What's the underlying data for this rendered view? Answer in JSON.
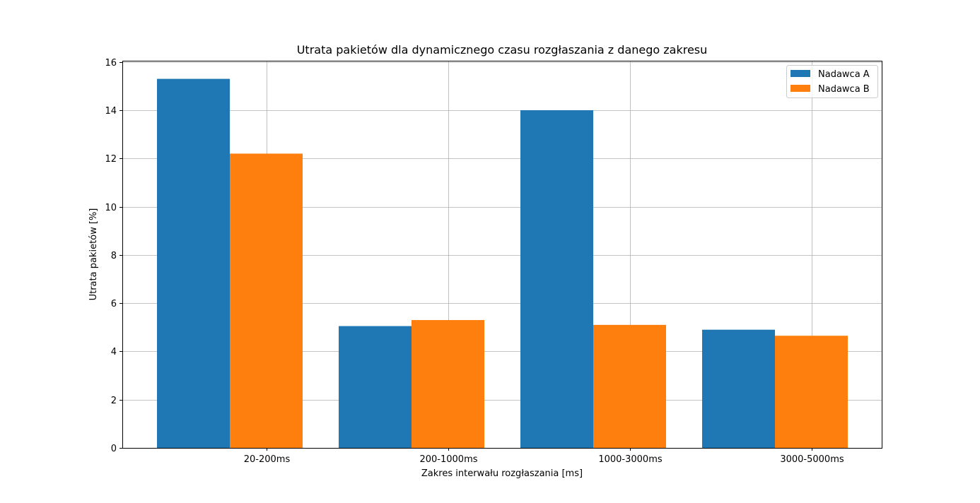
{
  "chart_data": {
    "type": "bar",
    "title": "Utrata pakietów dla dynamicznego czasu rozgłaszania z danego zakresu",
    "xlabel": "Zakres interwału rozgłaszania [ms]",
    "ylabel": "Utrata pakietów [%]",
    "categories": [
      "20-200ms",
      "200-1000ms",
      "1000-3000ms",
      "3000-5000ms"
    ],
    "series": [
      {
        "name": "Nadawca A",
        "color": "#1f77b4",
        "values": [
          15.3,
          5.05,
          14.0,
          4.9
        ]
      },
      {
        "name": "Nadawca B",
        "color": "#ff7f0e",
        "values": [
          12.2,
          5.3,
          5.1,
          4.65
        ]
      }
    ],
    "ylim": [
      0,
      16.05
    ],
    "yticks": [
      0,
      2,
      4,
      6,
      8,
      10,
      12,
      14,
      16
    ],
    "grid": true,
    "legend": "top-right"
  }
}
